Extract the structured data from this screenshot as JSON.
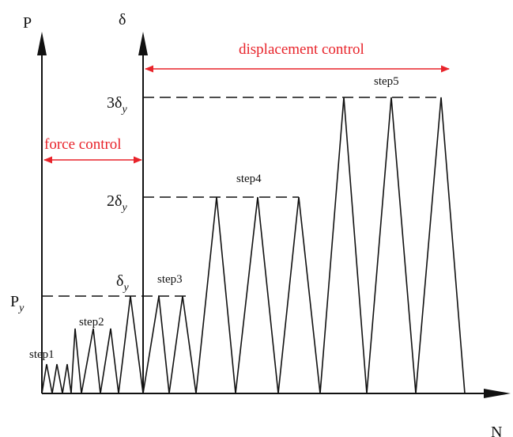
{
  "colors": {
    "line": "#111111",
    "annotation": "#e8232a",
    "background": "#ffffff"
  },
  "axes": {
    "p_label": "P",
    "delta_label": "δ",
    "n_label": "N"
  },
  "levels": {
    "py": {
      "base": "P",
      "sub": "y"
    },
    "dy": {
      "base": "δ",
      "sub": "y"
    },
    "dy2": {
      "base": "2δ",
      "sub": "y"
    },
    "dy3": {
      "base": "3δ",
      "sub": "y"
    }
  },
  "steps": {
    "step1": "step1",
    "step2": "step2",
    "step3": "step3",
    "step4": "step4",
    "step5": "step5"
  },
  "controls": {
    "force": "force control",
    "displacement": "displacement control"
  }
}
